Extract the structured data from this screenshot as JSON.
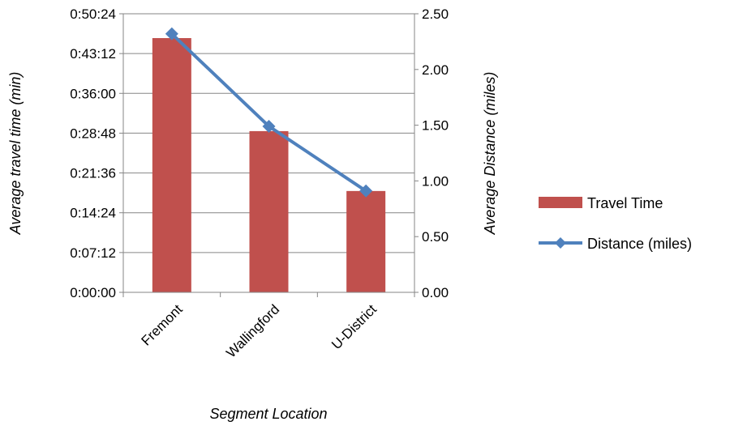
{
  "chart_data": {
    "type": "bar",
    "categories": [
      "Fremont",
      "Wallingford",
      "U-District"
    ],
    "series": [
      {
        "name": "Travel Time",
        "type": "bar",
        "axis": "left",
        "color": "#c0504d",
        "values": [
          "0:46:00",
          "0:29:10",
          "0:18:20"
        ]
      },
      {
        "name": "Distance (miles)",
        "type": "line",
        "axis": "right",
        "color": "#4f81bd",
        "marker": "diamond",
        "values": [
          2.32,
          1.49,
          0.91
        ]
      }
    ],
    "xlabel": "Segment Location",
    "ylabel_left": "Average travel time (min)",
    "ylabel_right": "Average Distance (miles)",
    "y_left_ticks": [
      "0:00:00",
      "0:07:12",
      "0:14:24",
      "0:21:36",
      "0:28:48",
      "0:36:00",
      "0:43:12",
      "0:50:24"
    ],
    "y_left_range": [
      "0:00:00",
      "0:50:24"
    ],
    "y_right_ticks": [
      "0.00",
      "0.50",
      "1.00",
      "1.50",
      "2.00",
      "2.50"
    ],
    "y_right_range": [
      0,
      2.5
    ],
    "grid": true,
    "legend_position": "right"
  }
}
